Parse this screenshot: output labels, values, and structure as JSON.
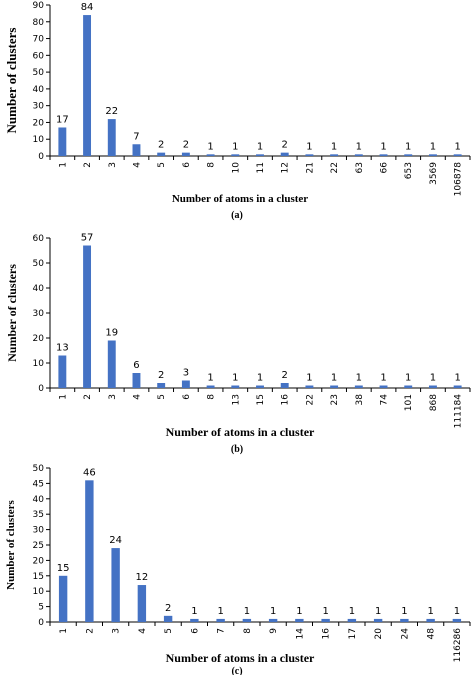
{
  "chart_data": [
    {
      "type": "bar",
      "panel": "(a)",
      "categories": [
        "1",
        "2",
        "3",
        "4",
        "5",
        "6",
        "8",
        "10",
        "11",
        "12",
        "21",
        "22",
        "63",
        "66",
        "653",
        "3569",
        "106878"
      ],
      "values": [
        17,
        84,
        22,
        7,
        2,
        2,
        1,
        1,
        1,
        2,
        1,
        1,
        1,
        1,
        1,
        1,
        1
      ],
      "xlabel": "Number of atoms in a cluster",
      "ylabel": "Number of clusters",
      "ylim": [
        0,
        90
      ],
      "yticks": [
        0,
        10,
        20,
        30,
        40,
        50,
        60,
        70,
        80,
        90
      ],
      "bar_color": "#4472C4",
      "grid": false
    },
    {
      "type": "bar",
      "panel": "(b)",
      "categories": [
        "1",
        "2",
        "3",
        "4",
        "5",
        "6",
        "8",
        "13",
        "15",
        "16",
        "22",
        "23",
        "38",
        "74",
        "101",
        "868",
        "111184"
      ],
      "values": [
        13,
        57,
        19,
        6,
        2,
        3,
        1,
        1,
        1,
        2,
        1,
        1,
        1,
        1,
        1,
        1,
        1
      ],
      "xlabel": "Number of atoms in a cluster",
      "ylabel": "Number of clusters",
      "ylim": [
        0,
        60
      ],
      "yticks": [
        0,
        10,
        20,
        30,
        40,
        50,
        60
      ],
      "bar_color": "#4472C4",
      "grid": false
    },
    {
      "type": "bar",
      "panel": "(c)",
      "categories": [
        "1",
        "2",
        "3",
        "4",
        "5",
        "6",
        "7",
        "8",
        "9",
        "14",
        "16",
        "17",
        "20",
        "24",
        "48",
        "116286"
      ],
      "values": [
        15,
        46,
        24,
        12,
        2,
        1,
        1,
        1,
        1,
        1,
        1,
        1,
        1,
        1,
        1,
        1
      ],
      "xlabel": "Number of atoms in a cluster",
      "ylabel": "Number of clusters",
      "ylim": [
        0,
        50
      ],
      "yticks": [
        0,
        5,
        10,
        15,
        20,
        25,
        30,
        35,
        40,
        45,
        50
      ],
      "bar_color": "#4472C4",
      "grid": false
    }
  ]
}
